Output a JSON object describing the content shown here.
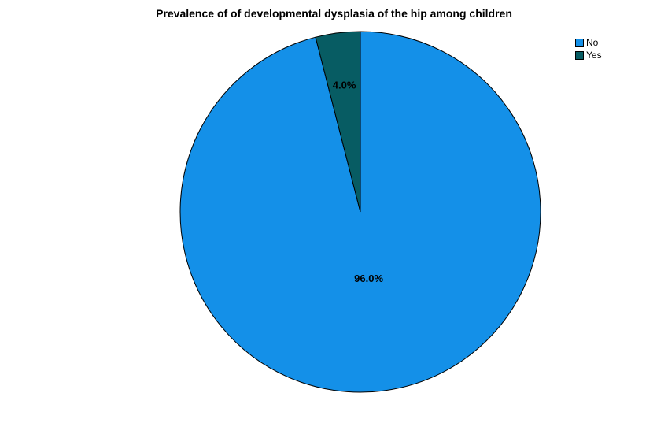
{
  "chart_data": {
    "type": "pie",
    "title": "Prevalence of of developmental dysplasia of the hip among children",
    "slices": [
      {
        "name": "No",
        "value": 96.0,
        "label": "96.0%",
        "color": "#1490E8"
      },
      {
        "name": "Yes",
        "value": 4.0,
        "label": "4.0%",
        "color": "#075C63"
      }
    ],
    "start_angle_deg": 0,
    "direction": "clockwise",
    "legend_position": "top-right"
  }
}
